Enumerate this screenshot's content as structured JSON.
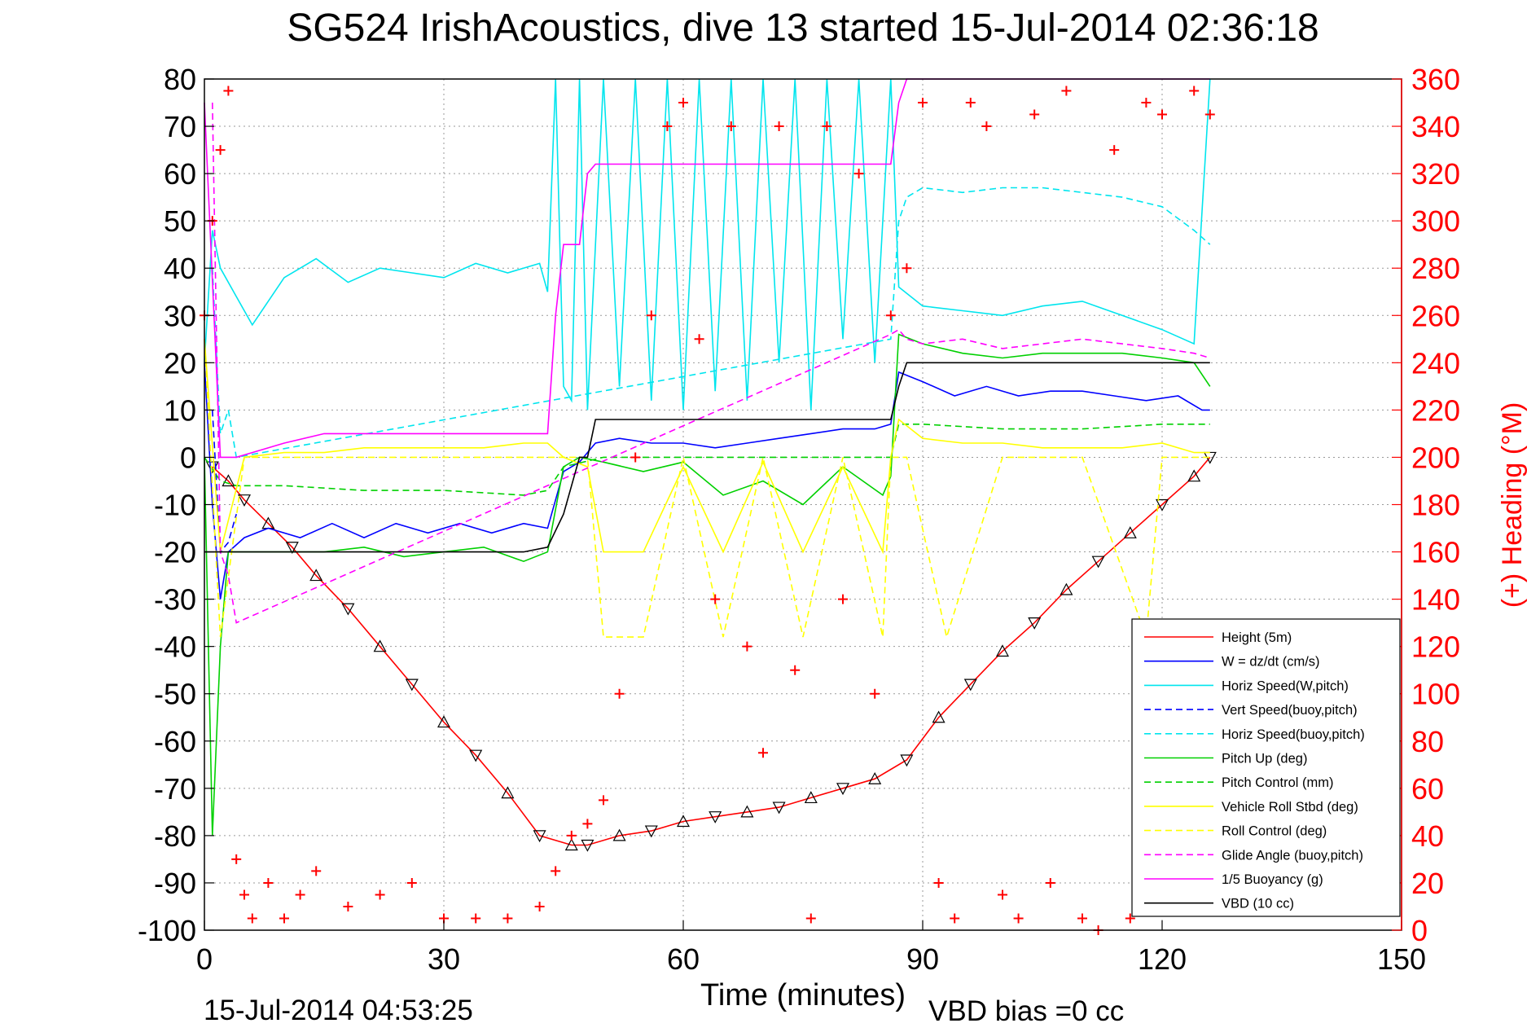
{
  "chart_data": {
    "type": "line",
    "title": "SG524 IrishAcoustics, dive 13 started 15-Jul-2014 02:36:18",
    "xlabel": "Time (minutes)",
    "ylabel_right": "(+) Heading (°M)",
    "footer_left": "15-Jul-2014 04:53:25",
    "footer_right": "VBD bias =0 cc",
    "xlim": [
      0,
      150
    ],
    "ylim": [
      -100,
      80
    ],
    "ylim_right": [
      0,
      360
    ],
    "xticks": [
      0,
      30,
      60,
      90,
      120,
      150
    ],
    "yticks": [
      80,
      70,
      60,
      50,
      40,
      30,
      20,
      10,
      0,
      -10,
      -20,
      -30,
      -40,
      -50,
      -60,
      -70,
      -80,
      -90,
      -100
    ],
    "yticks_right": [
      360,
      340,
      320,
      300,
      280,
      260,
      240,
      220,
      200,
      180,
      160,
      140,
      120,
      100,
      80,
      60,
      40,
      20,
      0
    ],
    "grid": true,
    "legend_position": "lower-right",
    "series": [
      {
        "name": "Height (5m)",
        "color": "#ff0000",
        "style": "solid",
        "x": [
          1,
          3,
          5,
          8,
          11,
          14,
          18,
          22,
          26,
          30,
          34,
          38,
          42,
          46,
          48,
          52,
          56,
          60,
          64,
          68,
          72,
          76,
          80,
          84,
          88,
          92,
          96,
          100,
          104,
          108,
          112,
          116,
          120,
          124,
          126
        ],
        "y": [
          -2,
          -5,
          -9,
          -14,
          -19,
          -25,
          -32,
          -40,
          -48,
          -56,
          -63,
          -71,
          -80,
          -82,
          -82,
          -80,
          -79,
          -77,
          -76,
          -75,
          -74,
          -72,
          -70,
          -68,
          -64,
          -55,
          -48,
          -41,
          -35,
          -28,
          -22,
          -16,
          -10,
          -4,
          0
        ]
      },
      {
        "name": "W = dz/dt (cm/s)",
        "color": "#0000ff",
        "style": "solid",
        "x": [
          0,
          1,
          2,
          3,
          5,
          8,
          12,
          16,
          20,
          24,
          28,
          32,
          36,
          40,
          43,
          45,
          47,
          49,
          52,
          56,
          60,
          64,
          68,
          72,
          76,
          80,
          84,
          86,
          87,
          90,
          94,
          98,
          102,
          106,
          110,
          114,
          118,
          122,
          125,
          126
        ],
        "y": [
          20,
          -10,
          -30,
          -20,
          -17,
          -15,
          -17,
          -14,
          -17,
          -14,
          -16,
          -14,
          -16,
          -14,
          -15,
          -3,
          -1,
          3,
          4,
          3,
          3,
          2,
          3,
          4,
          5,
          6,
          6,
          7,
          18,
          16,
          13,
          15,
          13,
          14,
          14,
          13,
          12,
          13,
          10,
          10
        ]
      },
      {
        "name": "Horiz Speed(W,pitch)",
        "color": "#00e5ee",
        "style": "solid",
        "x": [
          0,
          1,
          2,
          4,
          6,
          10,
          14,
          18,
          22,
          26,
          30,
          34,
          38,
          42,
          43,
          44,
          45,
          46,
          47,
          48,
          50,
          52,
          54,
          56,
          58,
          60,
          62,
          64,
          66,
          68,
          70,
          72,
          74,
          76,
          78,
          80,
          82,
          84,
          86,
          87,
          90,
          95,
          100,
          105,
          110,
          115,
          120,
          124,
          126
        ],
        "y": [
          20,
          48,
          40,
          34,
          28,
          38,
          42,
          37,
          40,
          39,
          38,
          41,
          39,
          41,
          35,
          80,
          15,
          12,
          80,
          10,
          80,
          15,
          80,
          12,
          80,
          10,
          80,
          14,
          80,
          12,
          80,
          20,
          80,
          10,
          80,
          25,
          80,
          20,
          80,
          36,
          32,
          31,
          30,
          32,
          33,
          30,
          27,
          24,
          80
        ]
      },
      {
        "name": "Vert Speed(buoy,pitch)",
        "color": "#0000ff",
        "style": "dashed",
        "x": [
          1,
          2,
          3,
          4
        ],
        "y": [
          10,
          -20,
          -18,
          -12
        ]
      },
      {
        "name": "Horiz Speed(buoy,pitch)",
        "color": "#00e5ee",
        "style": "dashed",
        "x": [
          1,
          2,
          3,
          4,
          86,
          87,
          88,
          90,
          95,
          100,
          105,
          110,
          115,
          120,
          124,
          126
        ],
        "y": [
          40,
          5,
          10,
          0,
          25,
          50,
          55,
          57,
          56,
          57,
          57,
          56,
          55,
          53,
          48,
          45
        ]
      },
      {
        "name": "Pitch Up (deg)",
        "color": "#00d000",
        "style": "solid",
        "x": [
          0,
          1,
          2,
          3,
          6,
          10,
          15,
          20,
          25,
          30,
          35,
          40,
          43,
          45,
          47,
          50,
          55,
          60,
          65,
          70,
          75,
          80,
          85,
          86,
          87,
          90,
          95,
          100,
          105,
          110,
          115,
          120,
          124,
          126
        ],
        "y": [
          0,
          -80,
          -40,
          -20,
          -20,
          -20,
          -20,
          -19,
          -21,
          -20,
          -19,
          -22,
          -20,
          -2,
          0,
          -1,
          -3,
          -1,
          -8,
          -5,
          -10,
          -2,
          -8,
          -4,
          26,
          24,
          22,
          21,
          22,
          22,
          22,
          21,
          20,
          15
        ]
      },
      {
        "name": "Pitch Control (mm)",
        "color": "#00d000",
        "style": "dashed",
        "x": [
          0,
          2,
          4,
          10,
          20,
          30,
          40,
          43,
          45,
          50,
          60,
          70,
          80,
          86,
          87,
          90,
          100,
          110,
          120,
          126
        ],
        "y": [
          0,
          -5,
          -6,
          -6,
          -7,
          -7,
          -8,
          -7,
          -2,
          0,
          0,
          0,
          0,
          0,
          7,
          7,
          6,
          6,
          7,
          7
        ]
      },
      {
        "name": "Vehicle Roll Stbd (deg)",
        "color": "#ffff00",
        "style": "solid",
        "x": [
          0,
          2,
          5,
          10,
          15,
          20,
          25,
          30,
          35,
          40,
          43,
          45,
          48,
          50,
          55,
          60,
          65,
          70,
          75,
          80,
          85,
          86,
          87,
          90,
          95,
          100,
          105,
          110,
          115,
          120,
          124,
          126
        ],
        "y": [
          25,
          -20,
          0,
          1,
          1,
          2,
          2,
          2,
          2,
          3,
          3,
          0,
          -2,
          -20,
          -20,
          -2,
          -20,
          -1,
          -20,
          -2,
          -20,
          0,
          8,
          4,
          3,
          3,
          2,
          2,
          2,
          3,
          1,
          1
        ]
      },
      {
        "name": "Roll Control (deg)",
        "color": "#ffff00",
        "style": "dashed",
        "x": [
          0,
          2,
          5,
          10,
          15,
          25,
          35,
          45,
          48,
          50,
          55,
          60,
          65,
          70,
          75,
          80,
          85,
          86,
          88,
          93,
          100,
          110,
          118,
          120,
          126
        ],
        "y": [
          25,
          -38,
          0,
          0,
          0,
          0,
          0,
          0,
          0,
          -38,
          -38,
          0,
          -38,
          0,
          -38,
          0,
          -38,
          0,
          0,
          -38,
          0,
          0,
          -38,
          0,
          0
        ]
      },
      {
        "name": "Glide Angle (buoy,pitch)",
        "color": "#ff00ff",
        "style": "dashed",
        "x": [
          1,
          2,
          3,
          4,
          86,
          87,
          88,
          90,
          95,
          100,
          105,
          110,
          115,
          120,
          124,
          126
        ],
        "y": [
          75,
          -20,
          -25,
          -35,
          26,
          27,
          25,
          24,
          25,
          23,
          24,
          25,
          24,
          23,
          22,
          21
        ]
      },
      {
        "name": "1/5 Buoyancy (g)",
        "color": "#ff00ff",
        "style": "solid",
        "x": [
          0,
          2,
          4,
          6,
          10,
          15,
          20,
          30,
          40,
          43,
          44,
          45,
          47,
          48,
          49,
          55,
          60,
          70,
          80,
          86,
          87,
          88,
          89,
          126
        ],
        "y": [
          75,
          0,
          0,
          1,
          3,
          5,
          5,
          5,
          5,
          5,
          30,
          45,
          45,
          60,
          62,
          62,
          62,
          62,
          62,
          62,
          75,
          80,
          80,
          80
        ]
      },
      {
        "name": "VBD (10 cc)",
        "color": "#000000",
        "style": "solid",
        "x": [
          0,
          2,
          6,
          12,
          20,
          30,
          40,
          43,
          45,
          46,
          47,
          48,
          49,
          55,
          60,
          70,
          80,
          86,
          87,
          88,
          126
        ],
        "y": [
          -20,
          -20,
          -20,
          -20,
          -20,
          -20,
          -20,
          -19,
          -12,
          -6,
          0,
          0,
          8,
          8,
          8,
          8,
          8,
          8,
          15,
          20,
          20
        ]
      },
      {
        "name": "Heading",
        "color": "#ff0000",
        "style": "markers",
        "axis": "right",
        "x": [
          0,
          1,
          2,
          3,
          4,
          5,
          6,
          8,
          10,
          12,
          14,
          18,
          22,
          26,
          30,
          34,
          38,
          42,
          44,
          46,
          48,
          50,
          52,
          54,
          56,
          58,
          60,
          62,
          64,
          66,
          68,
          70,
          72,
          74,
          76,
          78,
          80,
          82,
          84,
          86,
          88,
          90,
          92,
          94,
          96,
          98,
          100,
          102,
          104,
          106,
          108,
          110,
          112,
          114,
          116,
          118,
          120,
          122,
          124,
          126
        ],
        "y": [
          260,
          300,
          330,
          355,
          30,
          15,
          5,
          20,
          5,
          15,
          25,
          10,
          15,
          20,
          5,
          5,
          5,
          10,
          25,
          40,
          45,
          55,
          100,
          200,
          260,
          340,
          350,
          250,
          140,
          340,
          120,
          75,
          340,
          110,
          5,
          340,
          140,
          320,
          100,
          260,
          280,
          350,
          20,
          5,
          350,
          340,
          15,
          5,
          345,
          20,
          355,
          5,
          0,
          330,
          5,
          350,
          345,
          10,
          355,
          345
        ]
      }
    ]
  }
}
